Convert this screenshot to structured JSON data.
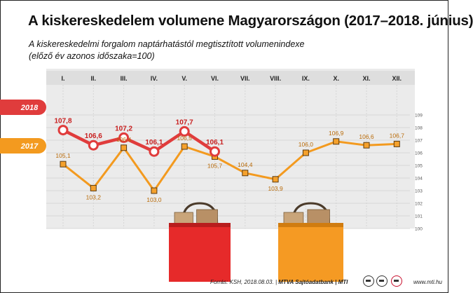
{
  "chart_data": {
    "type": "line",
    "title": "A kiskereskedelem volumene Magyarországon (2017–2018. június)",
    "subtitle_line1": "A kiskereskedelmi forgalom naptárhatástól megtisztított volumenindexe",
    "subtitle_line2": "(előző év azonos időszaka=100)",
    "categories": [
      "I.",
      "II.",
      "III.",
      "IV.",
      "V.",
      "VI.",
      "VII.",
      "VIII.",
      "IX.",
      "X.",
      "XI.",
      "XII."
    ],
    "series": [
      {
        "name": "2018",
        "color": "#e03c3c",
        "values": [
          107.8,
          106.6,
          107.2,
          106.1,
          107.7,
          106.1,
          null,
          null,
          null,
          null,
          null,
          null
        ],
        "labels": [
          "107,8",
          "106,6",
          "107,2",
          "106,1",
          "107,7",
          "106,1"
        ]
      },
      {
        "name": "2017",
        "color": "#f39a1f",
        "values": [
          105.1,
          103.2,
          106.4,
          103.0,
          106.5,
          105.7,
          104.4,
          103.9,
          106.0,
          106.9,
          106.6,
          106.7
        ],
        "labels": [
          "105,1",
          "103,2",
          "106,4",
          "103,0",
          "106,5",
          "105,7",
          "104,4",
          "103,9",
          "106,0",
          "106,9",
          "106,6",
          "106,7"
        ]
      }
    ],
    "ylim": [
      100,
      109
    ],
    "yticks": [
      "100",
      "101",
      "102",
      "103",
      "104",
      "105",
      "106",
      "107",
      "108",
      "109"
    ],
    "grid": true,
    "legend": "left"
  },
  "footer": {
    "source": "Forrás: KSH, 2018.08.03. | ",
    "credit": "MTVA Sajtóadatbank | MTI",
    "site": "www.mti.hu"
  }
}
